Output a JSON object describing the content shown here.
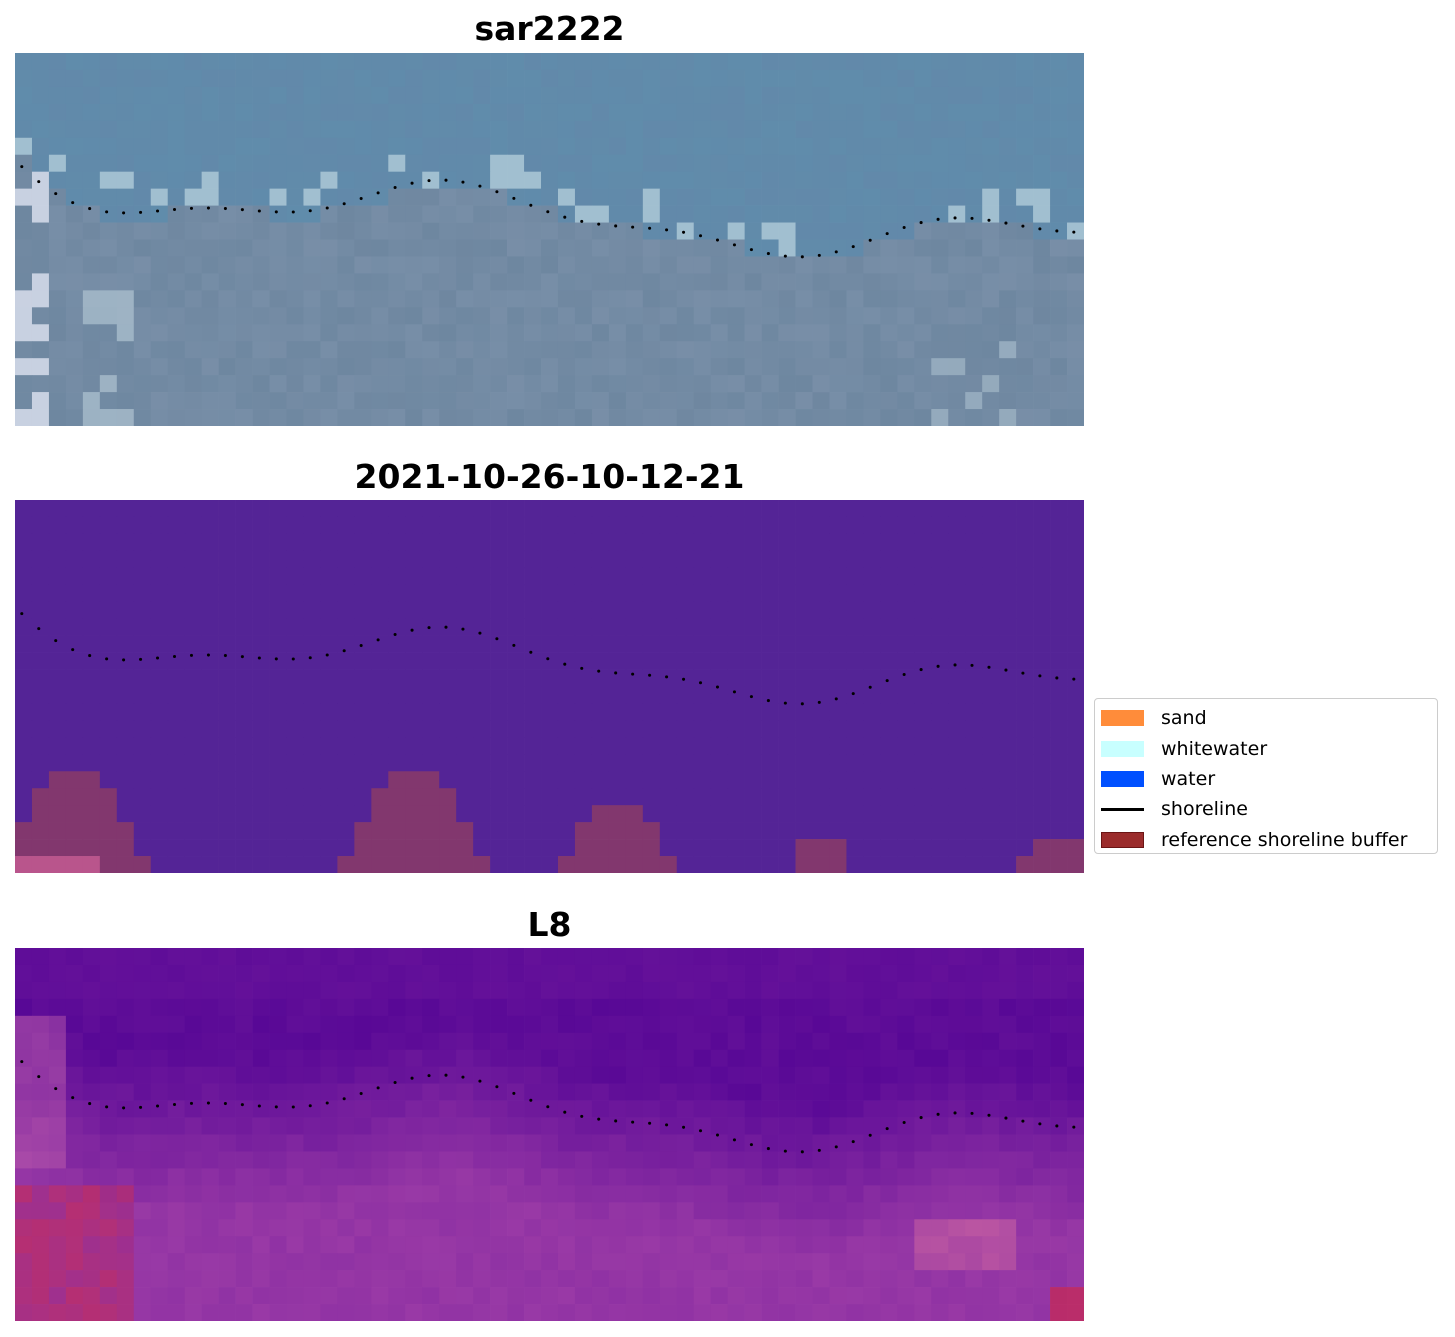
{
  "panels": [
    {
      "title": "sar2222",
      "kind": "rgb"
    },
    {
      "title": "2021-10-26-10-12-21",
      "kind": "classification"
    },
    {
      "title": "L8",
      "kind": "index"
    }
  ],
  "shoreline_color": "#000000",
  "legend": {
    "items": [
      {
        "label": "sand",
        "color": "#ff8c3a",
        "type": "patch"
      },
      {
        "label": "whitewater",
        "color": "#c8ffff",
        "type": "patch"
      },
      {
        "label": "water",
        "color": "#0050ff",
        "type": "patch"
      },
      {
        "label": "shoreline",
        "color": "#000000",
        "type": "line"
      },
      {
        "label": "reference shoreline buffer",
        "color": "#9b2c2c",
        "type": "patch"
      }
    ]
  }
}
